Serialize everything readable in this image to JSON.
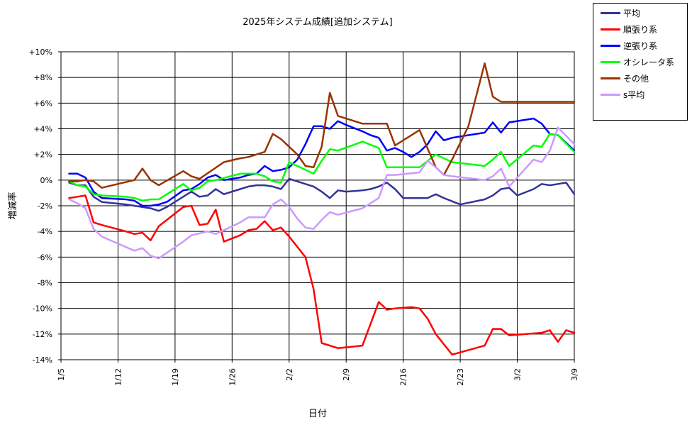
{
  "chart_data": {
    "type": "line",
    "title": "2025年システム成績[追加システム]",
    "xlabel": "日付",
    "ylabel": "増減率",
    "ylim": [
      -14,
      10
    ],
    "y_ticks": [
      "+10%",
      "+8%",
      "+6%",
      "+4%",
      "+2%",
      "0%",
      "-2%",
      "-4%",
      "-6%",
      "-8%",
      "-10%",
      "-12%",
      "-14%"
    ],
    "x_ticks": [
      "1/5",
      "1/12",
      "1/19",
      "1/26",
      "2/2",
      "2/9",
      "2/16",
      "2/23",
      "3/2",
      "3/9"
    ],
    "x_range": [
      "2025-01-05",
      "2025-03-09"
    ],
    "grid": true,
    "legend_position": "top-right",
    "series": [
      {
        "name": "平均",
        "color": "#333399",
        "points": [
          [
            "2025-01-06",
            -0.2
          ],
          [
            "2025-01-07",
            -0.4
          ],
          [
            "2025-01-08",
            -0.4
          ],
          [
            "2025-01-09",
            -1.3
          ],
          [
            "2025-01-10",
            -1.7
          ],
          [
            "2025-01-13",
            -1.9
          ],
          [
            "2025-01-14",
            -2.0
          ],
          [
            "2025-01-15",
            -2.1
          ],
          [
            "2025-01-16",
            -2.2
          ],
          [
            "2025-01-17",
            -2.4
          ],
          [
            "2025-01-18",
            -2.1
          ],
          [
            "2025-01-20",
            -1.3
          ],
          [
            "2025-01-21",
            -0.9
          ],
          [
            "2025-01-22",
            -1.3
          ],
          [
            "2025-01-23",
            -1.2
          ],
          [
            "2025-01-24",
            -0.7
          ],
          [
            "2025-01-25",
            -1.1
          ],
          [
            "2025-01-27",
            -0.7
          ],
          [
            "2025-01-28",
            -0.5
          ],
          [
            "2025-01-29",
            -0.4
          ],
          [
            "2025-01-30",
            -0.4
          ],
          [
            "2025-01-31",
            -0.5
          ],
          [
            "2025-02-01",
            -0.7
          ],
          [
            "2025-02-02",
            0.1
          ],
          [
            "2025-02-05",
            -0.5
          ],
          [
            "2025-02-06",
            -0.9
          ],
          [
            "2025-02-07",
            -1.4
          ],
          [
            "2025-02-08",
            -0.8
          ],
          [
            "2025-02-09",
            -0.9
          ],
          [
            "2025-02-11",
            -0.8
          ],
          [
            "2025-02-12",
            -0.7
          ],
          [
            "2025-02-13",
            -0.5
          ],
          [
            "2025-02-14",
            -0.2
          ],
          [
            "2025-02-15",
            -0.7
          ],
          [
            "2025-02-16",
            -1.4
          ],
          [
            "2025-02-19",
            -1.4
          ],
          [
            "2025-02-20",
            -1.1
          ],
          [
            "2025-02-21",
            -1.4
          ],
          [
            "2025-02-23",
            -1.9
          ],
          [
            "2025-02-26",
            -1.5
          ],
          [
            "2025-02-27",
            -1.2
          ],
          [
            "2025-02-28",
            -0.7
          ],
          [
            "2025-03-01",
            -0.6
          ],
          [
            "2025-03-02",
            -1.2
          ],
          [
            "2025-03-04",
            -0.7
          ],
          [
            "2025-03-05",
            -0.3
          ],
          [
            "2025-03-06",
            -0.4
          ],
          [
            "2025-03-07",
            -0.3
          ],
          [
            "2025-03-08",
            -0.2
          ],
          [
            "2025-03-09",
            -1.1
          ]
        ]
      },
      {
        "name": "順張り系",
        "color": "#ff0000",
        "points": [
          [
            "2025-01-06",
            -1.4
          ],
          [
            "2025-01-07",
            -1.3
          ],
          [
            "2025-01-08",
            -1.2
          ],
          [
            "2025-01-09",
            -3.3
          ],
          [
            "2025-01-10",
            -3.5
          ],
          [
            "2025-01-13",
            -4.0
          ],
          [
            "2025-01-14",
            -4.2
          ],
          [
            "2025-01-15",
            -4.1
          ],
          [
            "2025-01-16",
            -4.7
          ],
          [
            "2025-01-17",
            -3.6
          ],
          [
            "2025-01-18",
            -3.1
          ],
          [
            "2025-01-20",
            -2.1
          ],
          [
            "2025-01-21",
            -2.0
          ],
          [
            "2025-01-22",
            -3.5
          ],
          [
            "2025-01-23",
            -3.4
          ],
          [
            "2025-01-24",
            -2.3
          ],
          [
            "2025-01-25",
            -4.8
          ],
          [
            "2025-01-27",
            -4.3
          ],
          [
            "2025-01-28",
            -3.9
          ],
          [
            "2025-01-29",
            -3.8
          ],
          [
            "2025-01-30",
            -3.2
          ],
          [
            "2025-01-31",
            -3.9
          ],
          [
            "2025-02-01",
            -3.7
          ],
          [
            "2025-02-02",
            -4.4
          ],
          [
            "2025-02-03",
            -5.2
          ],
          [
            "2025-02-04",
            -6.0
          ],
          [
            "2025-02-05",
            -8.5
          ],
          [
            "2025-02-06",
            -12.7
          ],
          [
            "2025-02-08",
            -13.1
          ],
          [
            "2025-02-11",
            -12.9
          ],
          [
            "2025-02-13",
            -9.5
          ],
          [
            "2025-02-14",
            -10.1
          ],
          [
            "2025-02-15",
            -10.0
          ],
          [
            "2025-02-17",
            -9.9
          ],
          [
            "2025-02-18",
            -10.0
          ],
          [
            "2025-02-19",
            -10.8
          ],
          [
            "2025-02-20",
            -12.0
          ],
          [
            "2025-02-22",
            -13.6
          ],
          [
            "2025-02-26",
            -12.9
          ],
          [
            "2025-02-27",
            -11.6
          ],
          [
            "2025-02-28",
            -11.6
          ],
          [
            "2025-03-01",
            -12.1
          ],
          [
            "2025-03-05",
            -11.9
          ],
          [
            "2025-03-06",
            -11.7
          ],
          [
            "2025-03-07",
            -12.6
          ],
          [
            "2025-03-08",
            -11.7
          ],
          [
            "2025-03-09",
            -11.9
          ]
        ]
      },
      {
        "name": "逆張り系",
        "color": "#0000ff",
        "points": [
          [
            "2025-01-06",
            0.5
          ],
          [
            "2025-01-07",
            0.5
          ],
          [
            "2025-01-08",
            0.2
          ],
          [
            "2025-01-09",
            -0.9
          ],
          [
            "2025-01-10",
            -1.4
          ],
          [
            "2025-01-13",
            -1.5
          ],
          [
            "2025-01-14",
            -1.6
          ],
          [
            "2025-01-15",
            -2.0
          ],
          [
            "2025-01-16",
            -2.0
          ],
          [
            "2025-01-17",
            -1.9
          ],
          [
            "2025-01-18",
            -1.7
          ],
          [
            "2025-01-20",
            -0.8
          ],
          [
            "2025-01-21",
            -0.7
          ],
          [
            "2025-01-22",
            -0.3
          ],
          [
            "2025-01-23",
            0.2
          ],
          [
            "2025-01-24",
            0.4
          ],
          [
            "2025-01-25",
            0.0
          ],
          [
            "2025-01-27",
            0.2
          ],
          [
            "2025-01-28",
            0.4
          ],
          [
            "2025-01-29",
            0.5
          ],
          [
            "2025-01-30",
            1.1
          ],
          [
            "2025-01-31",
            0.7
          ],
          [
            "2025-02-01",
            0.8
          ],
          [
            "2025-02-02",
            1.0
          ],
          [
            "2025-02-03",
            1.6
          ],
          [
            "2025-02-04",
            2.8
          ],
          [
            "2025-02-05",
            4.2
          ],
          [
            "2025-02-06",
            4.2
          ],
          [
            "2025-02-07",
            4.0
          ],
          [
            "2025-02-08",
            4.6
          ],
          [
            "2025-02-09",
            4.3
          ],
          [
            "2025-02-11",
            3.8
          ],
          [
            "2025-02-12",
            3.5
          ],
          [
            "2025-02-13",
            3.3
          ],
          [
            "2025-02-14",
            2.3
          ],
          [
            "2025-02-15",
            2.5
          ],
          [
            "2025-02-16",
            2.2
          ],
          [
            "2025-02-17",
            1.8
          ],
          [
            "2025-02-18",
            2.2
          ],
          [
            "2025-02-19",
            2.8
          ],
          [
            "2025-02-20",
            3.8
          ],
          [
            "2025-02-21",
            3.1
          ],
          [
            "2025-02-22",
            3.3
          ],
          [
            "2025-02-26",
            3.7
          ],
          [
            "2025-02-27",
            4.5
          ],
          [
            "2025-02-28",
            3.7
          ],
          [
            "2025-03-01",
            4.5
          ],
          [
            "2025-03-04",
            4.8
          ],
          [
            "2025-03-05",
            4.4
          ],
          [
            "2025-03-06",
            3.6
          ],
          [
            "2025-03-07",
            3.5
          ],
          [
            "2025-03-09",
            2.3
          ]
        ]
      },
      {
        "name": "オシレータ系",
        "color": "#00ff00",
        "points": [
          [
            "2025-01-06",
            -0.1
          ],
          [
            "2025-01-07",
            -0.4
          ],
          [
            "2025-01-08",
            -0.5
          ],
          [
            "2025-01-09",
            -1.1
          ],
          [
            "2025-01-10",
            -1.2
          ],
          [
            "2025-01-13",
            -1.3
          ],
          [
            "2025-01-14",
            -1.4
          ],
          [
            "2025-01-15",
            -1.6
          ],
          [
            "2025-01-16",
            -1.5
          ],
          [
            "2025-01-17",
            -1.5
          ],
          [
            "2025-01-18",
            -1.1
          ],
          [
            "2025-01-20",
            -0.3
          ],
          [
            "2025-01-21",
            -0.8
          ],
          [
            "2025-01-22",
            -0.6
          ],
          [
            "2025-01-23",
            -0.1
          ],
          [
            "2025-01-24",
            0.0
          ],
          [
            "2025-01-27",
            0.5
          ],
          [
            "2025-01-28",
            0.5
          ],
          [
            "2025-01-29",
            0.5
          ],
          [
            "2025-01-30",
            0.3
          ],
          [
            "2025-01-31",
            -0.1
          ],
          [
            "2025-02-01",
            -0.2
          ],
          [
            "2025-02-02",
            1.4
          ],
          [
            "2025-02-05",
            0.5
          ],
          [
            "2025-02-06",
            1.5
          ],
          [
            "2025-02-07",
            2.4
          ],
          [
            "2025-02-08",
            2.3
          ],
          [
            "2025-02-11",
            3.0
          ],
          [
            "2025-02-13",
            2.5
          ],
          [
            "2025-02-14",
            1.0
          ],
          [
            "2025-02-18",
            1.0
          ],
          [
            "2025-02-20",
            2.0
          ],
          [
            "2025-02-21",
            1.7
          ],
          [
            "2025-02-22",
            1.4
          ],
          [
            "2025-02-26",
            1.1
          ],
          [
            "2025-02-27",
            1.6
          ],
          [
            "2025-02-28",
            2.2
          ],
          [
            "2025-03-01",
            1.1
          ],
          [
            "2025-03-04",
            2.7
          ],
          [
            "2025-03-05",
            2.6
          ],
          [
            "2025-03-06",
            3.6
          ],
          [
            "2025-03-07",
            3.5
          ],
          [
            "2025-03-09",
            2.2
          ]
        ]
      },
      {
        "name": "その他",
        "color": "#993300",
        "points": [
          [
            "2025-01-06",
            -0.1
          ],
          [
            "2025-01-07",
            -0.1
          ],
          [
            "2025-01-08",
            0.0
          ],
          [
            "2025-01-09",
            -0.1
          ],
          [
            "2025-01-10",
            -0.6
          ],
          [
            "2025-01-14",
            0.0
          ],
          [
            "2025-01-15",
            0.9
          ],
          [
            "2025-01-16",
            0.0
          ],
          [
            "2025-01-17",
            -0.4
          ],
          [
            "2025-01-20",
            0.7
          ],
          [
            "2025-01-21",
            0.3
          ],
          [
            "2025-01-22",
            0.1
          ],
          [
            "2025-01-25",
            1.4
          ],
          [
            "2025-01-27",
            1.7
          ],
          [
            "2025-01-28",
            1.8
          ],
          [
            "2025-01-30",
            2.2
          ],
          [
            "2025-01-31",
            3.6
          ],
          [
            "2025-02-01",
            3.2
          ],
          [
            "2025-02-03",
            2.0
          ],
          [
            "2025-02-04",
            1.1
          ],
          [
            "2025-02-05",
            1.0
          ],
          [
            "2025-02-06",
            2.6
          ],
          [
            "2025-02-07",
            6.8
          ],
          [
            "2025-02-08",
            5.0
          ],
          [
            "2025-02-11",
            4.4
          ],
          [
            "2025-02-14",
            4.4
          ],
          [
            "2025-02-15",
            2.7
          ],
          [
            "2025-02-18",
            3.9
          ],
          [
            "2025-02-20",
            1.0
          ],
          [
            "2025-02-21",
            0.4
          ],
          [
            "2025-02-22",
            1.6
          ],
          [
            "2025-02-24",
            4.2
          ],
          [
            "2025-02-26",
            9.1
          ],
          [
            "2025-02-27",
            6.5
          ],
          [
            "2025-02-28",
            6.1
          ],
          [
            "2025-03-09",
            6.1
          ]
        ]
      },
      {
        "name": "s平均",
        "color": "#cc99ff",
        "points": [
          [
            "2025-01-06",
            -1.5
          ],
          [
            "2025-01-07",
            -1.8
          ],
          [
            "2025-01-08",
            -2.2
          ],
          [
            "2025-01-09",
            -3.8
          ],
          [
            "2025-01-10",
            -4.4
          ],
          [
            "2025-01-14",
            -5.5
          ],
          [
            "2025-01-15",
            -5.3
          ],
          [
            "2025-01-16",
            -5.9
          ],
          [
            "2025-01-17",
            -6.1
          ],
          [
            "2025-01-20",
            -4.8
          ],
          [
            "2025-01-21",
            -4.3
          ],
          [
            "2025-01-23",
            -4.0
          ],
          [
            "2025-01-24",
            -4.2
          ],
          [
            "2025-01-27",
            -3.3
          ],
          [
            "2025-01-28",
            -2.9
          ],
          [
            "2025-01-29",
            -2.9
          ],
          [
            "2025-01-30",
            -2.9
          ],
          [
            "2025-01-31",
            -1.9
          ],
          [
            "2025-02-01",
            -1.5
          ],
          [
            "2025-02-02",
            -2.1
          ],
          [
            "2025-02-03",
            -3.0
          ],
          [
            "2025-02-04",
            -3.7
          ],
          [
            "2025-02-05",
            -3.8
          ],
          [
            "2025-02-06",
            -3.1
          ],
          [
            "2025-02-07",
            -2.5
          ],
          [
            "2025-02-08",
            -2.7
          ],
          [
            "2025-02-11",
            -2.2
          ],
          [
            "2025-02-12",
            -1.8
          ],
          [
            "2025-02-13",
            -1.4
          ],
          [
            "2025-02-14",
            0.4
          ],
          [
            "2025-02-15",
            0.4
          ],
          [
            "2025-02-18",
            0.6
          ],
          [
            "2025-02-19",
            1.5
          ],
          [
            "2025-02-20",
            1.0
          ],
          [
            "2025-02-21",
            0.4
          ],
          [
            "2025-02-22",
            0.3
          ],
          [
            "2025-02-26",
            0.0
          ],
          [
            "2025-02-27",
            0.3
          ],
          [
            "2025-02-28",
            0.9
          ],
          [
            "2025-03-01",
            -0.5
          ],
          [
            "2025-03-04",
            1.6
          ],
          [
            "2025-03-05",
            1.4
          ],
          [
            "2025-03-06",
            2.3
          ],
          [
            "2025-03-07",
            4.1
          ],
          [
            "2025-03-09",
            2.8
          ]
        ]
      }
    ]
  }
}
